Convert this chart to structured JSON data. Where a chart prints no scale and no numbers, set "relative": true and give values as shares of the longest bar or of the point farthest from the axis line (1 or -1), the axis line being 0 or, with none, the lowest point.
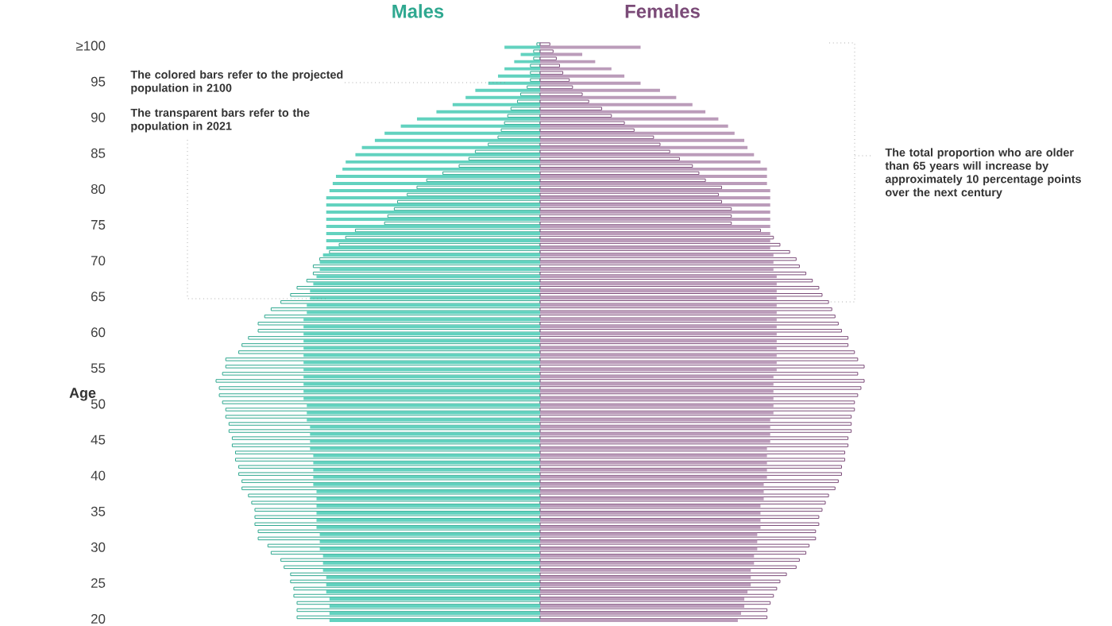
{
  "chart_data": {
    "type": "bar",
    "orientation": "horizontal",
    "relative": true,
    "ylabel": "Age",
    "categories": [
      "≥100",
      null,
      null,
      null,
      null,
      "95",
      null,
      null,
      null,
      null,
      "90",
      null,
      null,
      null,
      null,
      "85",
      null,
      null,
      null,
      null,
      "80",
      null,
      null,
      null,
      null,
      "75",
      null,
      null,
      null,
      null,
      "70",
      null,
      null,
      null,
      null,
      "65",
      null,
      null,
      null,
      null,
      "60",
      null,
      null,
      null,
      null,
      "55",
      null,
      null,
      null,
      null,
      "50",
      null,
      null,
      null,
      null,
      "45",
      null,
      null,
      null,
      null,
      "40",
      null,
      null,
      null,
      null,
      "35",
      null,
      null,
      null,
      null,
      "30",
      null,
      null,
      null,
      null,
      "25",
      null,
      null,
      null,
      null,
      "20"
    ],
    "series": [
      {
        "color": "#62d2bf",
        "values": [
          -0.11,
          -0.06,
          -0.08,
          -0.11,
          -0.13,
          -0.16,
          -0.2,
          -0.23,
          -0.27,
          -0.32,
          -0.38,
          -0.43,
          -0.48,
          -0.51,
          -0.55,
          -0.57,
          -0.6,
          -0.61,
          -0.63,
          -0.64,
          -0.65,
          -0.66,
          -0.66,
          -0.66,
          -0.66,
          -0.66,
          -0.66,
          -0.66,
          -0.66,
          -0.67,
          -0.68,
          -0.68,
          -0.69,
          -0.7,
          -0.71,
          -0.71,
          -0.72,
          -0.72,
          -0.73,
          -0.73,
          -0.73,
          -0.73,
          -0.73,
          -0.73,
          -0.73,
          -0.73,
          -0.73,
          -0.73,
          -0.73,
          -0.73,
          -0.72,
          -0.72,
          -0.72,
          -0.71,
          -0.71,
          -0.71,
          -0.71,
          -0.7,
          -0.7,
          -0.7,
          -0.7,
          -0.7,
          -0.69,
          -0.69,
          -0.69,
          -0.69,
          -0.69,
          -0.69,
          -0.68,
          -0.68,
          -0.68,
          -0.67,
          -0.67,
          -0.67,
          -0.66,
          -0.66,
          -0.66,
          -0.65,
          -0.65,
          -0.65,
          -0.65
        ]
      },
      {
        "color": "#bb9cba",
        "values": [
          0.31,
          0.13,
          0.17,
          0.22,
          0.26,
          0.31,
          0.37,
          0.42,
          0.47,
          0.51,
          0.55,
          0.58,
          0.6,
          0.63,
          0.64,
          0.66,
          0.68,
          0.7,
          0.7,
          0.7,
          0.71,
          0.71,
          0.71,
          0.71,
          0.71,
          0.71,
          0.71,
          0.71,
          0.71,
          0.72,
          0.72,
          0.72,
          0.73,
          0.73,
          0.73,
          0.73,
          0.73,
          0.73,
          0.73,
          0.73,
          0.73,
          0.73,
          0.73,
          0.73,
          0.73,
          0.73,
          0.72,
          0.72,
          0.72,
          0.72,
          0.72,
          0.72,
          0.71,
          0.71,
          0.71,
          0.71,
          0.7,
          0.7,
          0.7,
          0.7,
          0.7,
          0.69,
          0.69,
          0.69,
          0.68,
          0.68,
          0.68,
          0.68,
          0.67,
          0.67,
          0.67,
          0.66,
          0.66,
          0.65,
          0.65,
          0.65,
          0.64,
          0.63,
          0.63,
          0.62,
          0.61
        ]
      },
      {
        "name": "Males",
        "color": "#2fa890",
        "values": [
          -0.01,
          -0.02,
          -0.02,
          -0.03,
          -0.03,
          -0.03,
          -0.04,
          -0.06,
          -0.07,
          -0.09,
          -0.1,
          -0.11,
          -0.12,
          -0.13,
          -0.16,
          -0.2,
          -0.22,
          -0.25,
          -0.3,
          -0.35,
          -0.38,
          -0.41,
          -0.44,
          -0.45,
          -0.47,
          -0.48,
          -0.57,
          -0.6,
          -0.62,
          -0.65,
          -0.68,
          -0.7,
          -0.7,
          -0.72,
          -0.75,
          -0.77,
          -0.8,
          -0.83,
          -0.85,
          -0.87,
          -0.87,
          -0.9,
          -0.92,
          -0.93,
          -0.97,
          -0.97,
          -0.98,
          -1.0,
          -0.99,
          -0.99,
          -0.98,
          -0.97,
          -0.97,
          -0.96,
          -0.96,
          -0.95,
          -0.95,
          -0.94,
          -0.94,
          -0.93,
          -0.93,
          -0.92,
          -0.92,
          -0.9,
          -0.89,
          -0.88,
          -0.88,
          -0.88,
          -0.87,
          -0.87,
          -0.84,
          -0.83,
          -0.8,
          -0.79,
          -0.77,
          -0.77,
          -0.76,
          -0.76,
          -0.75,
          -0.75,
          -0.75
        ]
      },
      {
        "name": "Females",
        "color": "#7b4b78",
        "values": [
          0.03,
          0.04,
          0.05,
          0.06,
          0.07,
          0.09,
          0.1,
          0.13,
          0.15,
          0.19,
          0.22,
          0.26,
          0.29,
          0.35,
          0.37,
          0.4,
          0.43,
          0.47,
          0.49,
          0.51,
          0.56,
          0.55,
          0.56,
          0.59,
          0.59,
          0.59,
          0.68,
          0.72,
          0.74,
          0.77,
          0.79,
          0.8,
          0.82,
          0.84,
          0.86,
          0.87,
          0.89,
          0.9,
          0.91,
          0.92,
          0.93,
          0.95,
          0.95,
          0.97,
          0.98,
          1.0,
          0.98,
          1.0,
          0.99,
          0.98,
          0.97,
          0.97,
          0.96,
          0.96,
          0.96,
          0.95,
          0.95,
          0.94,
          0.94,
          0.93,
          0.93,
          0.92,
          0.91,
          0.89,
          0.88,
          0.87,
          0.86,
          0.86,
          0.85,
          0.85,
          0.83,
          0.82,
          0.8,
          0.79,
          0.76,
          0.74,
          0.73,
          0.72,
          0.71,
          0.7,
          0.7
        ]
      }
    ],
    "annotations": [
      "The colored bars refer to the projected population in 2100",
      "The transparent bars refer to the population in 2021",
      "The total proportion who are older than 65 years will increase by approximately 10 percentage points over the next century"
    ]
  }
}
